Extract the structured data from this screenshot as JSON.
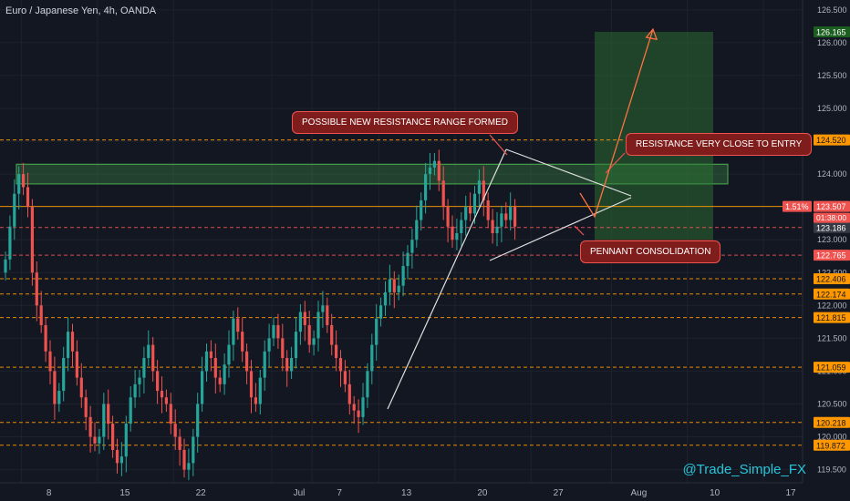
{
  "header": {
    "symbol_title": "Euro / Japanese Yen, 4h, OANDA"
  },
  "watermark": "@Trade_Simple_FX",
  "annotations": {
    "resistance_range": "POSSIBLE NEW RESISTANCE RANGE FORMED",
    "resistance_entry": "RESISTANCE VERY CLOSE TO ENTRY",
    "pennant": "PENNANT CONSOLIDATION"
  },
  "price_axis": {
    "ticks": [
      "126.500",
      "126.000",
      "125.500",
      "125.000",
      "124.500",
      "124.000",
      "123.500",
      "123.000",
      "122.500",
      "122.000",
      "121.500",
      "121.000",
      "120.500",
      "120.000",
      "119.500"
    ],
    "labels": [
      {
        "value": "126.165",
        "price": 126.165,
        "color": "#1b5e20",
        "text_color": "#ffffff"
      },
      {
        "value": "124.520",
        "price": 124.52,
        "color": "#ff9800",
        "text_color": "#131722"
      },
      {
        "value": "123.507",
        "price": 123.507,
        "color": "#ef5350",
        "text_color": "#ffffff"
      },
      {
        "value": "123.186",
        "price": 123.186,
        "color": "#363a45",
        "text_color": "#ffffff"
      },
      {
        "value": "122.765",
        "price": 122.765,
        "color": "#ef5350",
        "text_color": "#ffffff"
      },
      {
        "value": "122.406",
        "price": 122.406,
        "color": "#ff9800",
        "text_color": "#131722"
      },
      {
        "value": "122.174",
        "price": 122.174,
        "color": "#ff9800",
        "text_color": "#131722"
      },
      {
        "value": "121.815",
        "price": 121.815,
        "color": "#ff9800",
        "text_color": "#131722"
      },
      {
        "value": "121.059",
        "price": 121.059,
        "color": "#ff9800",
        "text_color": "#131722"
      },
      {
        "value": "120.218",
        "price": 120.218,
        "color": "#ff9800",
        "text_color": "#131722"
      },
      {
        "value": "119.872",
        "price": 119.872,
        "color": "#ff9800",
        "text_color": "#131722"
      }
    ],
    "current_pct": "1.51%",
    "countdown": "01:38:00"
  },
  "time_axis": {
    "labels": [
      {
        "text": "8",
        "index": 4
      },
      {
        "text": "15",
        "index": 21
      },
      {
        "text": "22",
        "index": 38
      },
      {
        "text": "Jul",
        "index": 60
      },
      {
        "text": "7",
        "index": 69
      },
      {
        "text": "13",
        "index": 84
      },
      {
        "text": "20",
        "index": 101
      },
      {
        "text": "27",
        "index": 118
      },
      {
        "text": "Aug",
        "index": 136
      },
      {
        "text": "10",
        "index": 153
      },
      {
        "text": "17",
        "index": 170
      }
    ]
  },
  "colors": {
    "up": "#26a69a",
    "down": "#ef5350",
    "level": "#ff9800",
    "background": "#131722"
  },
  "chart_data": {
    "type": "candlestick",
    "symbol": "Euro / Japanese Yen, 4h, OANDA",
    "ylim": [
      119.3,
      126.65
    ],
    "key_levels": [
      124.52,
      123.507,
      123.186,
      122.765,
      122.406,
      122.174,
      121.815,
      121.059,
      120.218,
      119.872
    ],
    "resistance_zone": [
      123.85,
      124.15
    ],
    "long_position": {
      "entry": 123.0,
      "target": 126.165,
      "stop": 122.765
    },
    "approx_closes": [
      122.7,
      123.2,
      123.7,
      124.0,
      123.8,
      123.5,
      122.5,
      122.0,
      121.7,
      121.3,
      121.0,
      120.5,
      120.7,
      121.2,
      121.6,
      121.3,
      120.9,
      120.6,
      120.3,
      120.0,
      119.9,
      120.0,
      120.5,
      120.2,
      119.8,
      119.6,
      119.7,
      120.2,
      120.6,
      120.8,
      120.9,
      121.2,
      121.4,
      121.0,
      120.7,
      120.6,
      120.5,
      120.2,
      120.0,
      119.8,
      119.5,
      119.6,
      120.0,
      120.5,
      121.0,
      121.3,
      121.2,
      120.9,
      120.8,
      121.1,
      121.4,
      121.8,
      121.6,
      121.3,
      121.0,
      120.6,
      120.5,
      120.9,
      121.3,
      121.5,
      121.7,
      121.5,
      121.2,
      121.0,
      121.2,
      121.6,
      121.9,
      121.7,
      121.4,
      121.5,
      121.9,
      122.0,
      121.7,
      121.4,
      121.2,
      121.0,
      120.8,
      120.5,
      120.4,
      120.3,
      120.6,
      121.0,
      121.4,
      121.8,
      122.0,
      122.2,
      122.4,
      122.2,
      122.3,
      122.6,
      122.8,
      123.0,
      123.3,
      123.6,
      124.0,
      124.1,
      124.2,
      123.9,
      123.5,
      123.2,
      123.0,
      123.1,
      123.3,
      123.5,
      123.4,
      123.7,
      123.9,
      123.6,
      123.3,
      123.1,
      123.2,
      123.4,
      123.3,
      123.5,
      123.2
    ]
  }
}
